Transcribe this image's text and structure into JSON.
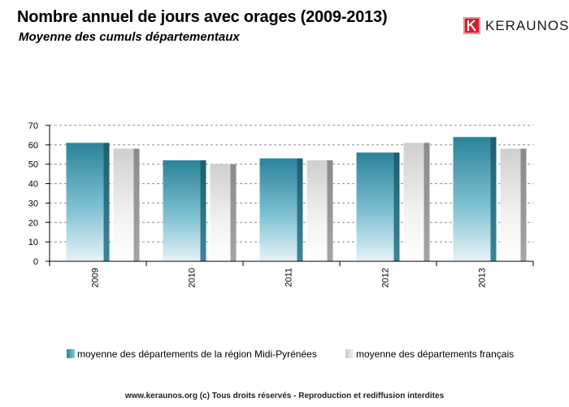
{
  "header": {
    "title": "Nombre annuel de jours avec orages (2009-2013)",
    "subtitle": "Moyenne des cumuls départementaux",
    "brand": "KERAUNOS"
  },
  "footer": {
    "text": "www.keraunos.org  (c) Tous droits réservés - Reproduction et rediffusion interdites"
  },
  "colors": {
    "series1": "#2d8aa3",
    "series2": "#d9d9d9",
    "brand": "#d3202b"
  },
  "chart_data": {
    "type": "bar",
    "categories": [
      "2009",
      "2010",
      "2011",
      "2012",
      "2013"
    ],
    "series": [
      {
        "name": "moyenne des départements de la région Midi-Pyrénées",
        "values": [
          61,
          52,
          53,
          56,
          64
        ]
      },
      {
        "name": "moyenne des départements français",
        "values": [
          58,
          50,
          52,
          61,
          58
        ]
      }
    ],
    "yticks": [
      0,
      10,
      20,
      30,
      40,
      50,
      60,
      70
    ],
    "ylim": [
      0,
      70
    ],
    "grid": true,
    "legend_position": "bottom"
  }
}
